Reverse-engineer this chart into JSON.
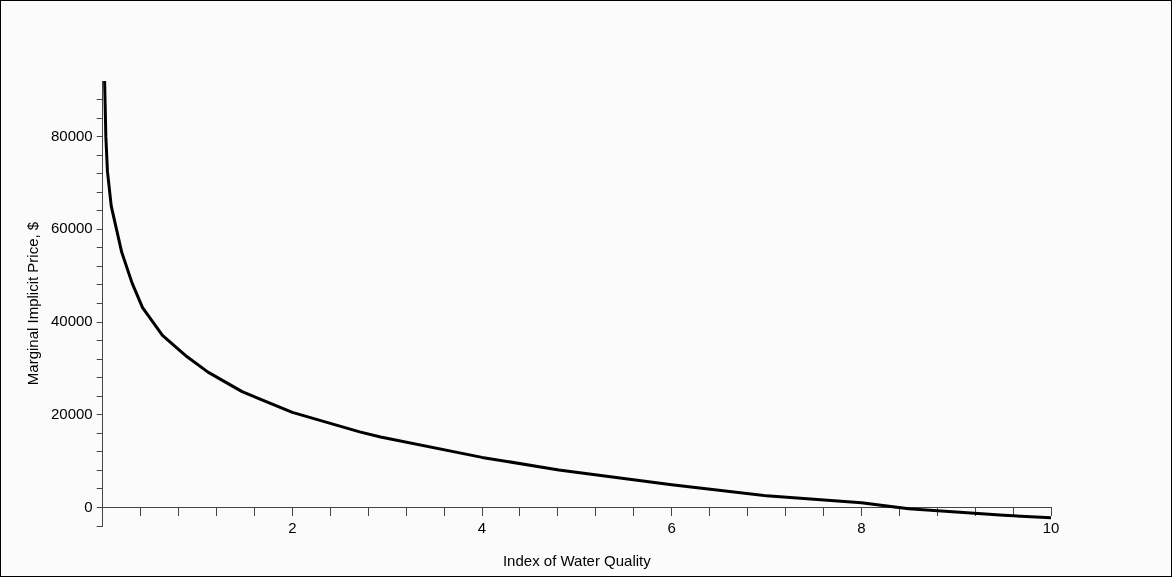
{
  "chart_data": {
    "type": "line",
    "xlabel": "Index of Water Quality",
    "ylabel": "Marginal Implicit Price, $",
    "x": [
      0.02,
      0.033,
      0.05,
      0.09,
      0.2,
      0.31,
      0.42,
      0.63,
      0.89,
      1.11,
      1.47,
      2.0,
      2.71,
      2.93,
      4.0,
      4.81,
      6.0,
      7.0,
      8.0,
      8.5,
      9.0,
      9.5,
      10.0
    ],
    "series": [
      {
        "color": "#000000",
        "values": [
          92000,
          80000,
          72500,
          65000,
          55100,
          48400,
          43100,
          37100,
          32500,
          29200,
          25000,
          20500,
          16300,
          15200,
          10800,
          8100,
          4900,
          2500,
          1000,
          -300,
          -1000,
          -1700,
          -2200
        ]
      }
    ],
    "xlim": [
      0,
      10
    ],
    "ylim": [
      -4000,
      92000
    ],
    "xticks": [
      {
        "value": 0.4,
        "label": null
      },
      {
        "value": 0.8,
        "label": null
      },
      {
        "value": 1.2,
        "label": null
      },
      {
        "value": 1.6,
        "label": null
      },
      2,
      {
        "value": 2.4,
        "label": null
      },
      {
        "value": 2.8,
        "label": null
      },
      {
        "value": 3.2,
        "label": null
      },
      {
        "value": 3.6,
        "label": null
      },
      4,
      {
        "value": 4.4,
        "label": null
      },
      {
        "value": 4.8,
        "label": null
      },
      {
        "value": 5.2,
        "label": null
      },
      {
        "value": 5.6,
        "label": null
      },
      6,
      {
        "value": 6.4,
        "label": null
      },
      {
        "value": 6.8,
        "label": null
      },
      {
        "value": 7.2,
        "label": null
      },
      {
        "value": 7.6,
        "label": null
      },
      8,
      {
        "value": 8.4,
        "label": null
      },
      {
        "value": 8.8,
        "label": null
      },
      {
        "value": 9.2,
        "label": null
      },
      {
        "value": 9.6,
        "label": null
      },
      10
    ],
    "yticks": [
      {
        "value": -4000,
        "label": null
      },
      0,
      {
        "value": 4000,
        "label": null
      },
      {
        "value": 8000,
        "label": null
      },
      {
        "value": 12000,
        "label": null
      },
      {
        "value": 16000,
        "label": null
      },
      20000,
      {
        "value": 24000,
        "label": null
      },
      {
        "value": 28000,
        "label": null
      },
      {
        "value": 32000,
        "label": null
      },
      {
        "value": 36000,
        "label": null
      },
      40000,
      {
        "value": 44000,
        "label": null
      },
      {
        "value": 48000,
        "label": null
      },
      {
        "value": 52000,
        "label": null
      },
      {
        "value": 56000,
        "label": null
      },
      60000,
      {
        "value": 64000,
        "label": null
      },
      {
        "value": 68000,
        "label": null
      },
      {
        "value": 72000,
        "label": null
      },
      {
        "value": 76000,
        "label": null
      },
      80000,
      {
        "value": 84000,
        "label": null
      },
      {
        "value": 88000,
        "label": null
      }
    ],
    "grid": false,
    "legend": false,
    "marker": "none",
    "line_style": "solid"
  }
}
